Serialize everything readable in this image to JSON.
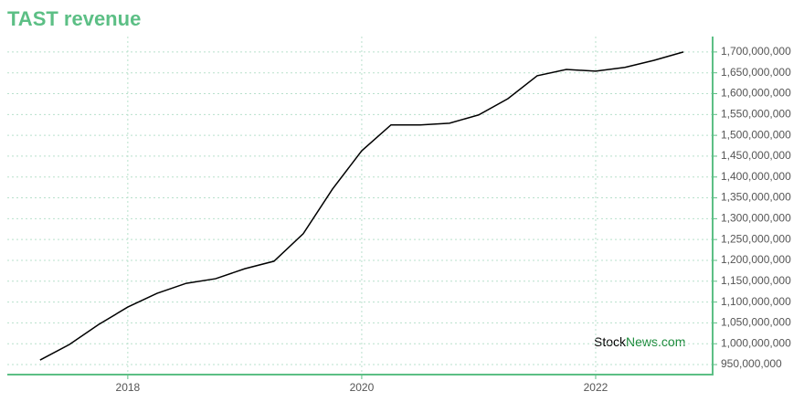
{
  "chart_data": {
    "type": "line",
    "title": "TAST revenue",
    "watermark": {
      "first": "Stock",
      "second": "News.com"
    },
    "x": [
      2017.25,
      2017.5,
      2017.75,
      2018,
      2018.25,
      2018.5,
      2018.75,
      2019,
      2019.25,
      2019.5,
      2019.75,
      2020,
      2020.25,
      2020.5,
      2020.75,
      2021,
      2021.25,
      2021.5,
      2021.75,
      2022,
      2022.25,
      2022.5,
      2022.75
    ],
    "series": [
      {
        "name": "Revenue",
        "color": "#000000",
        "values": [
          961000000,
          998000000,
          1046000000,
          1088000000,
          1121000000,
          1145000000,
          1156000000,
          1180000000,
          1198000000,
          1264000000,
          1371000000,
          1463000000,
          1525000000,
          1525000000,
          1529000000,
          1549000000,
          1588000000,
          1643000000,
          1658000000,
          1654000000,
          1663000000,
          1680000000,
          1700000000
        ]
      }
    ],
    "xlim": [
      2016.97,
      2023
    ],
    "xticks": [
      2018,
      2020,
      2022
    ],
    "ylim": [
      926000000,
      1737000000
    ],
    "yticks": [
      {
        "value": 950000000,
        "label": "950,000,000"
      },
      {
        "value": 1000000000,
        "label": "1,000,000,000"
      },
      {
        "value": 1050000000,
        "label": "1,050,000,000"
      },
      {
        "value": 1100000000,
        "label": "1,100,000,000"
      },
      {
        "value": 1150000000,
        "label": "1,150,000,000"
      },
      {
        "value": 1200000000,
        "label": "1,200,000,000"
      },
      {
        "value": 1250000000,
        "label": "1,250,000,000"
      },
      {
        "value": 1300000000,
        "label": "1,300,000,000"
      },
      {
        "value": 1350000000,
        "label": "1,350,000,000"
      },
      {
        "value": 1400000000,
        "label": "1,400,000,000"
      },
      {
        "value": 1450000000,
        "label": "1,450,000,000"
      },
      {
        "value": 1500000000,
        "label": "1,500,000,000"
      },
      {
        "value": 1550000000,
        "label": "1,550,000,000"
      },
      {
        "value": 1600000000,
        "label": "1,600,000,000"
      },
      {
        "value": 1650000000,
        "label": "1,650,000,000"
      },
      {
        "value": 1700000000,
        "label": "1,700,000,000"
      }
    ],
    "grid": true,
    "axis_color": "#5cbf85"
  }
}
